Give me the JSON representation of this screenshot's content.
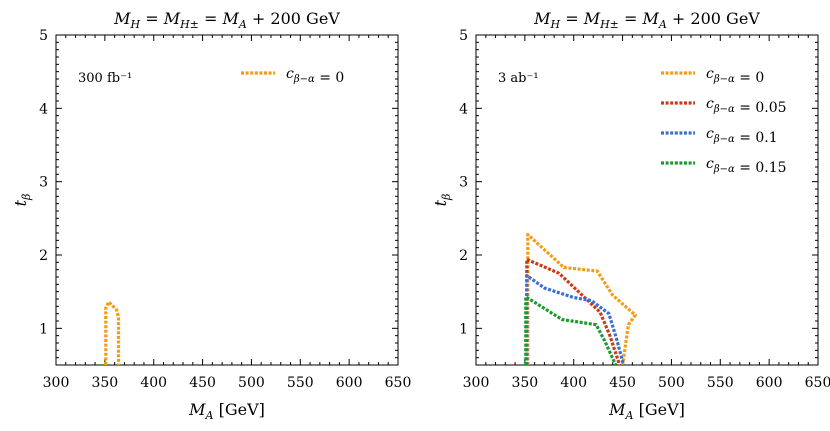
{
  "chart_data": [
    {
      "type": "line",
      "title": "M_H = M_{H±} = M_A + 200 GeV",
      "xlabel": "M_A  [GeV]",
      "ylabel": "t_β",
      "xlim": [
        300,
        650
      ],
      "ylim": [
        0.5,
        5
      ],
      "xticks": [
        300,
        350,
        400,
        450,
        500,
        550,
        600,
        650
      ],
      "yticks": [
        1,
        2,
        3,
        4,
        5
      ],
      "annotation": "300 fb⁻¹",
      "legend_position": "top-right",
      "series": [
        {
          "name": "c_{β−α} = 0",
          "color": "#f39c12",
          "points": [
            [
              351,
              0.5
            ],
            [
              351,
              1.28
            ],
            [
              354,
              1.36
            ],
            [
              362,
              1.25
            ],
            [
              364,
              1.15
            ],
            [
              364,
              0.5
            ]
          ]
        }
      ]
    },
    {
      "type": "line",
      "title": "M_H = M_{H±} = M_A + 200 GeV",
      "xlabel": "M_A  [GeV]",
      "ylabel": "t_β",
      "xlim": [
        300,
        650
      ],
      "ylim": [
        0.5,
        5
      ],
      "xticks": [
        300,
        350,
        400,
        450,
        500,
        550,
        600,
        650
      ],
      "yticks": [
        1,
        2,
        3,
        4,
        5
      ],
      "annotation": "3 ab⁻¹",
      "legend_position": "top-right",
      "series": [
        {
          "name": "c_{β−α} = 0",
          "color": "#f39c12",
          "points": [
            [
              353,
              0.5
            ],
            [
              353,
              2.28
            ],
            [
              390,
              1.83
            ],
            [
              424,
              1.78
            ],
            [
              440,
              1.45
            ],
            [
              463,
              1.18
            ],
            [
              456,
              1.05
            ],
            [
              450,
              0.5
            ]
          ]
        },
        {
          "name": "c_{β−α} = 0.05",
          "color": "#cc3a14",
          "points": [
            [
              352,
              0.5
            ],
            [
              352,
              1.94
            ],
            [
              385,
              1.75
            ],
            [
              427,
              1.22
            ],
            [
              437,
              0.9
            ],
            [
              447,
              0.5
            ]
          ]
        },
        {
          "name": "c_{β−α} = 0.1",
          "color": "#3b6fd1",
          "points": [
            [
              352,
              0.5
            ],
            [
              352,
              1.72
            ],
            [
              370,
              1.55
            ],
            [
              400,
              1.42
            ],
            [
              418,
              1.38
            ],
            [
              436,
              1.2
            ],
            [
              444,
              0.85
            ],
            [
              451,
              0.5
            ]
          ]
        },
        {
          "name": "c_{β−α} = 0.15",
          "color": "#1c9a2e",
          "points": [
            [
              351,
              0.5
            ],
            [
              351,
              1.43
            ],
            [
              388,
              1.12
            ],
            [
              423,
              1.05
            ],
            [
              432,
              0.82
            ],
            [
              443,
              0.5
            ]
          ]
        }
      ]
    }
  ]
}
